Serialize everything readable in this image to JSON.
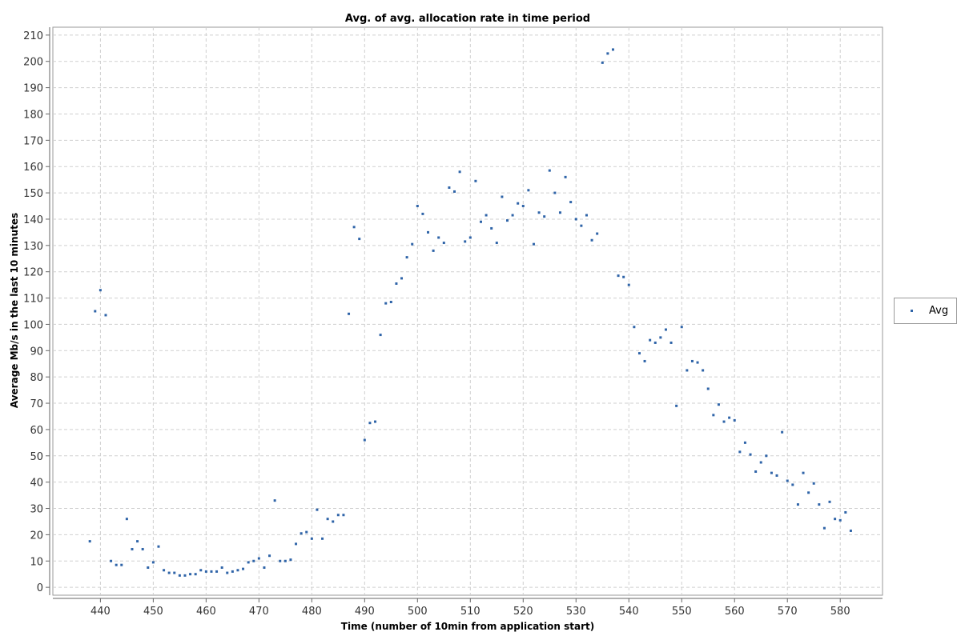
{
  "chart_data": {
    "type": "scatter",
    "title": "Avg. of avg. allocation rate in time period",
    "xlabel": "Time (number of 10min from application start)",
    "ylabel": "Average Mb/s in the last 10 minutes",
    "xlim": [
      431,
      588
    ],
    "ylim": [
      -3,
      213
    ],
    "xticks": [
      440,
      450,
      460,
      470,
      480,
      490,
      500,
      510,
      520,
      530,
      540,
      550,
      560,
      570,
      580
    ],
    "yticks": [
      0,
      10,
      20,
      30,
      40,
      50,
      60,
      70,
      80,
      90,
      100,
      110,
      120,
      130,
      140,
      150,
      160,
      170,
      180,
      190,
      200,
      210
    ],
    "grid": true,
    "legend_position": "right",
    "marker_color": "#2f64a8",
    "series": [
      {
        "name": "Avg",
        "x": [
          438,
          439,
          440,
          441,
          442,
          443,
          444,
          445,
          446,
          447,
          448,
          449,
          450,
          451,
          452,
          453,
          454,
          455,
          456,
          457,
          458,
          459,
          460,
          461,
          462,
          463,
          464,
          465,
          466,
          467,
          468,
          469,
          470,
          471,
          472,
          473,
          474,
          475,
          476,
          477,
          478,
          479,
          480,
          481,
          482,
          483,
          484,
          485,
          486,
          487,
          488,
          489,
          490,
          491,
          492,
          493,
          494,
          495,
          496,
          497,
          498,
          499,
          500,
          501,
          502,
          503,
          504,
          505,
          506,
          507,
          508,
          509,
          510,
          511,
          512,
          513,
          514,
          515,
          516,
          517,
          518,
          519,
          520,
          521,
          522,
          523,
          524,
          525,
          526,
          527,
          528,
          529,
          530,
          531,
          532,
          533,
          534,
          535,
          536,
          537,
          538,
          539,
          540,
          541,
          542,
          543,
          544,
          545,
          546,
          547,
          548,
          549,
          550,
          551,
          552,
          553,
          554,
          555,
          556,
          557,
          558,
          559,
          560,
          561,
          562,
          563,
          564,
          565,
          566,
          567,
          568,
          569,
          570,
          571,
          572,
          573,
          574,
          575,
          576,
          577,
          578,
          579,
          580,
          581,
          582
        ],
        "y": [
          17.5,
          105,
          113,
          103.5,
          10,
          8.5,
          8.5,
          26,
          14.5,
          17.5,
          14.5,
          7.5,
          9.5,
          15.5,
          6.5,
          5.5,
          5.5,
          4.5,
          4.5,
          5,
          5,
          6.5,
          6,
          6,
          6,
          7.5,
          5.5,
          6,
          6.5,
          7,
          9.5,
          10,
          11,
          7.5,
          12,
          33,
          10,
          10,
          10.5,
          16.5,
          20.5,
          21,
          18.5,
          29.5,
          18.5,
          26,
          25,
          27.5,
          27.5,
          104,
          137,
          132.5,
          56,
          62.5,
          63,
          96,
          108,
          108.5,
          115.5,
          117.5,
          125.5,
          130.5,
          145,
          142,
          135,
          128,
          133,
          131,
          152,
          150.5,
          158,
          131.5,
          133,
          154.5,
          139,
          141.5,
          136.5,
          131,
          148.5,
          139.5,
          141.5,
          146,
          145,
          151,
          130.5,
          142.5,
          141,
          158.5,
          150,
          142.5,
          156,
          146.5,
          140,
          137.5,
          141.5,
          132,
          134.5,
          199.5,
          203,
          204.5,
          118.5,
          118,
          115,
          99,
          89,
          86,
          94,
          93,
          95,
          98,
          93,
          69,
          99,
          82.5,
          86,
          85.5,
          82.5,
          75.5,
          65.5,
          69.5,
          63,
          64.5,
          63.5,
          51.5,
          55,
          50.5,
          44,
          47.5,
          50,
          43.5,
          42.5,
          59,
          40.5,
          39,
          31.5,
          43.5,
          36,
          39.5,
          31.5,
          22.5,
          32.5,
          26,
          25.5,
          28.5,
          21.5
        ]
      }
    ]
  }
}
